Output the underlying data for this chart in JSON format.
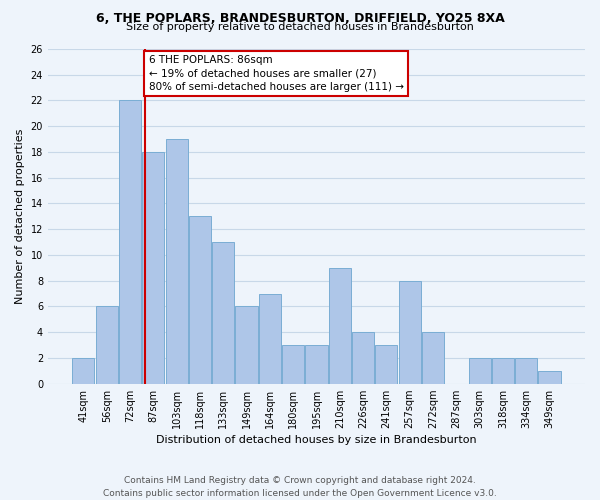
{
  "title": "6, THE POPLARS, BRANDESBURTON, DRIFFIELD, YO25 8XA",
  "subtitle": "Size of property relative to detached houses in Brandesburton",
  "xlabel": "Distribution of detached houses by size in Brandesburton",
  "ylabel": "Number of detached properties",
  "footer1": "Contains HM Land Registry data © Crown copyright and database right 2024.",
  "footer2": "Contains public sector information licensed under the Open Government Licence v3.0.",
  "categories": [
    "41sqm",
    "56sqm",
    "72sqm",
    "87sqm",
    "103sqm",
    "118sqm",
    "133sqm",
    "149sqm",
    "164sqm",
    "180sqm",
    "195sqm",
    "210sqm",
    "226sqm",
    "241sqm",
    "257sqm",
    "272sqm",
    "287sqm",
    "303sqm",
    "318sqm",
    "334sqm",
    "349sqm"
  ],
  "values": [
    2,
    6,
    22,
    18,
    19,
    13,
    11,
    6,
    7,
    3,
    3,
    9,
    4,
    3,
    8,
    4,
    0,
    2,
    2,
    2,
    1
  ],
  "bar_color": "#aec6e8",
  "bar_edge_color": "#7aadd4",
  "red_line_index": 2.65,
  "annotation_title": "6 THE POPLARS: 86sqm",
  "annotation_line1": "← 19% of detached houses are smaller (27)",
  "annotation_line2": "80% of semi-detached houses are larger (111) →",
  "annotation_box_color": "#ffffff",
  "annotation_box_edge": "#cc0000",
  "red_line_color": "#cc0000",
  "grid_color": "#c8d8e8",
  "background_color": "#eef4fb",
  "ylim": [
    0,
    26
  ],
  "yticks": [
    0,
    2,
    4,
    6,
    8,
    10,
    12,
    14,
    16,
    18,
    20,
    22,
    24,
    26
  ],
  "title_fontsize": 9,
  "subtitle_fontsize": 8,
  "xlabel_fontsize": 8,
  "ylabel_fontsize": 8,
  "tick_fontsize": 7,
  "annotation_fontsize": 7.5,
  "footer_fontsize": 6.5
}
